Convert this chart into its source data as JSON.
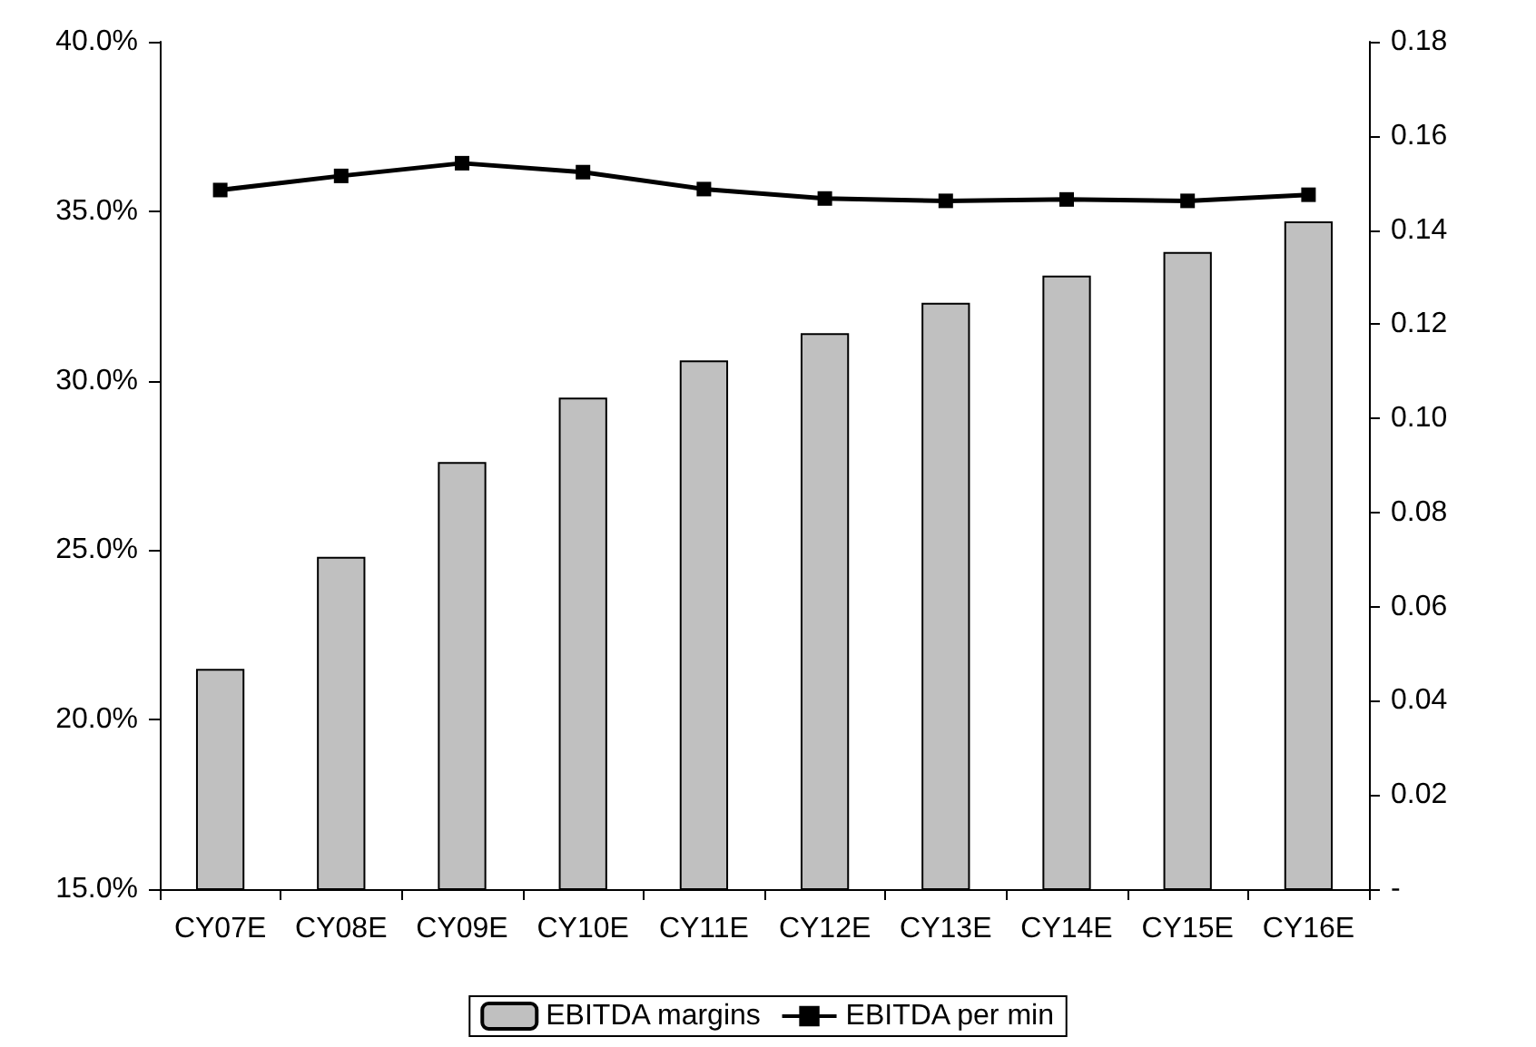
{
  "chart_data": {
    "type": "bar",
    "categories": [
      "CY07E",
      "CY08E",
      "CY09E",
      "CY10E",
      "CY11E",
      "CY12E",
      "CY13E",
      "CY14E",
      "CY15E",
      "CY16E"
    ],
    "series": [
      {
        "name": "EBITDA margins",
        "color": "#c0c0c0",
        "values": [
          21.5,
          24.8,
          27.6,
          29.5,
          30.6,
          31.4,
          32.3,
          33.1,
          33.8,
          34.7
        ]
      },
      {
        "name": "EBITDA per min",
        "type": "line",
        "axis": "y2",
        "color": "#000000",
        "marker": "square",
        "values": [
          0.1485,
          0.1515,
          0.1542,
          0.1523,
          0.1487,
          0.1467,
          0.1462,
          0.1465,
          0.1462,
          0.1475
        ]
      }
    ],
    "ylim": [
      15,
      40
    ],
    "yticks": [
      {
        "value": 15,
        "label": "15.0%"
      },
      {
        "value": 20,
        "label": "20.0%"
      },
      {
        "value": 25,
        "label": "25.0%"
      },
      {
        "value": 30,
        "label": "30.0%"
      },
      {
        "value": 35,
        "label": "35.0%"
      },
      {
        "value": 40,
        "label": "40.0%"
      }
    ],
    "y2lim": [
      0,
      0.18
    ],
    "y2ticks": [
      {
        "value": 0,
        "label": "-"
      },
      0.02,
      0.04,
      0.06,
      0.08,
      {
        "value": 0.1,
        "label": "0.10"
      },
      0.12,
      0.14,
      0.16,
      0.18
    ],
    "grid": false,
    "legend": "bottom"
  }
}
